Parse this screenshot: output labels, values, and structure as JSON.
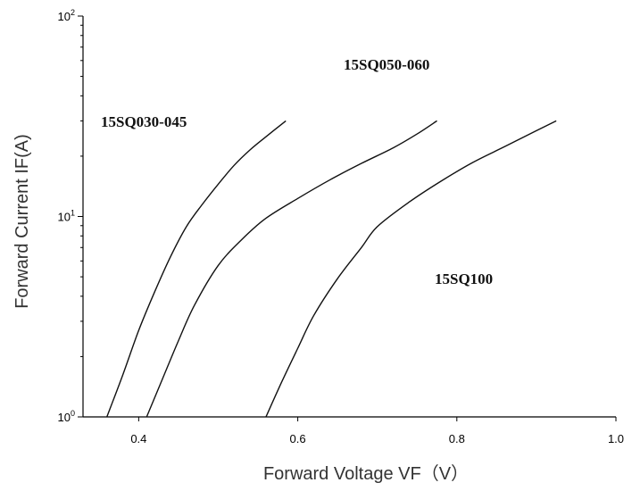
{
  "chart_data": {
    "type": "line",
    "title": "",
    "xlabel": "Forward Voltage VF（V）",
    "ylabel": "Forward Current IF(A)",
    "xlim": [
      0.33,
      1.0
    ],
    "ylim": [
      1,
      100
    ],
    "y_scale": "log",
    "x_ticks": [
      "0.4",
      "0.6",
      "0.8",
      "1.0"
    ],
    "x_tick_values": [
      0.4,
      0.6,
      0.8,
      1.0
    ],
    "y_ticks": [
      {
        "base": "10",
        "exp": "0",
        "value": 1
      },
      {
        "base": "10",
        "exp": "1",
        "value": 10
      },
      {
        "base": "10",
        "exp": "2",
        "value": 100
      }
    ],
    "grid": false,
    "series": [
      {
        "name": "15SQ030-045",
        "x": [
          0.36,
          0.38,
          0.4,
          0.42,
          0.44,
          0.46,
          0.48,
          0.5,
          0.52,
          0.54,
          0.56,
          0.585
        ],
        "y": [
          1.0,
          1.62,
          2.7,
          4.2,
          6.3,
          8.9,
          11.5,
          14.5,
          18.0,
          21.5,
          25.0,
          30.0
        ]
      },
      {
        "name": "15SQ050-060",
        "x": [
          0.41,
          0.43,
          0.45,
          0.47,
          0.5,
          0.53,
          0.56,
          0.6,
          0.64,
          0.68,
          0.72,
          0.75,
          0.775
        ],
        "y": [
          1.0,
          1.55,
          2.4,
          3.6,
          5.7,
          7.7,
          9.8,
          12.3,
          15.2,
          18.4,
          22.0,
          25.8,
          30.0
        ]
      },
      {
        "name": "15SQ100",
        "x": [
          0.56,
          0.58,
          0.6,
          0.62,
          0.65,
          0.68,
          0.7,
          0.74,
          0.78,
          0.82,
          0.86,
          0.9,
          0.925
        ],
        "y": [
          1.0,
          1.5,
          2.2,
          3.2,
          4.9,
          7.0,
          8.9,
          11.8,
          15.0,
          18.6,
          22.3,
          26.8,
          30.0
        ]
      }
    ]
  }
}
